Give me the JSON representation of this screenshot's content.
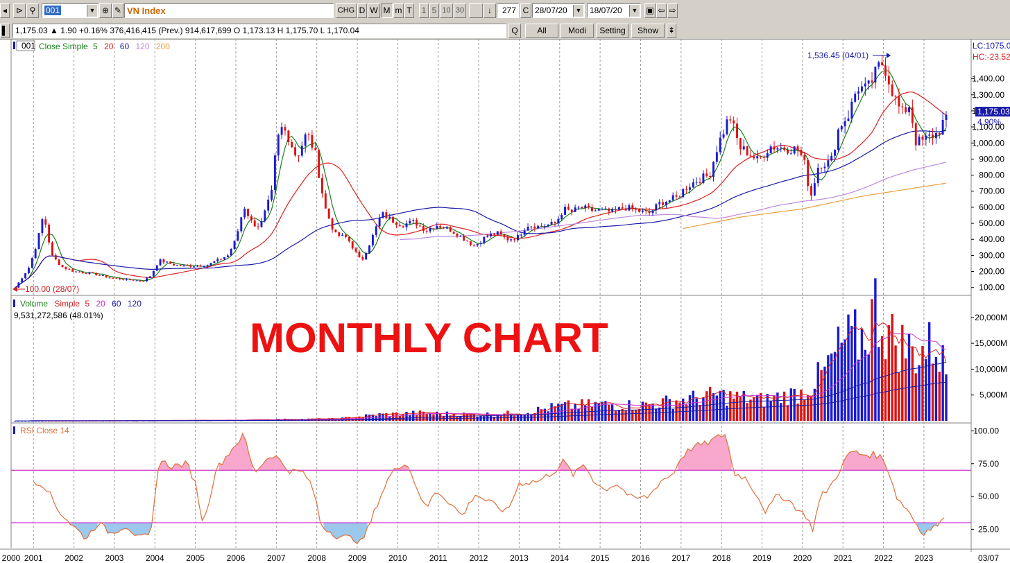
{
  "toolbar": {
    "symbol": "001",
    "name": "VN Index",
    "buttons": [
      "CHG",
      "D",
      "W",
      "M",
      "m",
      "T",
      "1",
      "5",
      "10",
      "30"
    ],
    "bar_count": "277",
    "c_button": "C",
    "from_date": "28/07/20",
    "to_date": "18/07/20"
  },
  "infobar": {
    "quote": "1,175.03 ▲ 1.90 +0.16% 376,416,415 (Prev.) 914,617,699 O 1,173.13 H 1,175.70 L 1,170.04",
    "q_label": "Q",
    "all_label": "All",
    "modi_label": "Modi",
    "setting_label": "Setting",
    "show_label": "Show"
  },
  "price_panel": {
    "symbol_tag": "001",
    "legend_prefix": "Close Simple",
    "ma_periods": [
      "5",
      "20",
      "60",
      "120",
      "200"
    ],
    "ma_colors": [
      "#1a7f1a",
      "#dd2222",
      "#1a1aa8",
      "#bb88dd",
      "#e8a040"
    ],
    "high_annotation": "1,536.45 (04/01)",
    "low_annotation": "100.00 (28/07)",
    "lc_label": "LC:1075.0",
    "hc_label": "HC:-23.52",
    "last_price_tag": "1,175.03",
    "change_pct_tag": "4.90%",
    "y_ticks": [
      "100.00",
      "200.00",
      "300.00",
      "400.00",
      "500.00",
      "600.00",
      "700.00",
      "800.00",
      "900.00",
      "1,000.00",
      "1,100.00",
      "1,200.00",
      "1,300.00",
      "1,400.00"
    ]
  },
  "volume_panel": {
    "title": "Volume",
    "legend_prefix": "Simple",
    "ma_periods": [
      "5",
      "20",
      "60",
      "120"
    ],
    "ma_colors": [
      "#dd2222",
      "#cc33cc",
      "#1a1aa8",
      "#1a1aa8"
    ],
    "last_value": "9,531,272,586 (48.01%)",
    "y_ticks": [
      "5,000M",
      "10,000M",
      "15,000M",
      "20,000M"
    ]
  },
  "rsi_panel": {
    "title": "RSI Close 14",
    "y_ticks": [
      "25.00",
      "50.00",
      "75.00",
      "100.00"
    ]
  },
  "overlay_text": "MONTHLY CHART",
  "x_axis": {
    "year_labels": [
      "2000",
      "2001",
      "2002",
      "2003",
      "2004",
      "2005",
      "2006",
      "2007",
      "2008",
      "2009",
      "2010",
      "2011",
      "2012",
      "2013",
      "2014",
      "2015",
      "2016",
      "2017",
      "2018",
      "2019",
      "2020",
      "2021",
      "2022",
      "2023"
    ],
    "right_label": "03/07"
  },
  "chart_data": {
    "type": "candlestick",
    "title": "VN Index",
    "interval": "monthly",
    "x_range": [
      2000.55,
      2023.55
    ],
    "price_ylim": [
      60,
      1640
    ],
    "price_anchors": [
      [
        2000.55,
        100
      ],
      [
        2000.9,
        230
      ],
      [
        2001.1,
        390
      ],
      [
        2001.25,
        560
      ],
      [
        2001.45,
        300
      ],
      [
        2001.7,
        230
      ],
      [
        2002.0,
        200
      ],
      [
        2002.5,
        185
      ],
      [
        2002.9,
        160
      ],
      [
        2003.3,
        150
      ],
      [
        2003.7,
        140
      ],
      [
        2003.9,
        175
      ],
      [
        2004.1,
        270
      ],
      [
        2004.5,
        240
      ],
      [
        2004.9,
        235
      ],
      [
        2005.3,
        240
      ],
      [
        2005.8,
        300
      ],
      [
        2006.0,
        400
      ],
      [
        2006.2,
        610
      ],
      [
        2006.4,
        500
      ],
      [
        2006.6,
        480
      ],
      [
        2006.9,
        700
      ],
      [
        2007.0,
        1000
      ],
      [
        2007.15,
        1100
      ],
      [
        2007.3,
        1040
      ],
      [
        2007.5,
        910
      ],
      [
        2007.75,
        1060
      ],
      [
        2007.95,
        950
      ],
      [
        2008.2,
        600
      ],
      [
        2008.45,
        430
      ],
      [
        2008.75,
        410
      ],
      [
        2009.1,
        260
      ],
      [
        2009.35,
        400
      ],
      [
        2009.6,
        560
      ],
      [
        2009.85,
        520
      ],
      [
        2010.1,
        490
      ],
      [
        2010.4,
        510
      ],
      [
        2010.7,
        455
      ],
      [
        2010.95,
        490
      ],
      [
        2011.3,
        460
      ],
      [
        2011.6,
        410
      ],
      [
        2011.9,
        360
      ],
      [
        2012.2,
        420
      ],
      [
        2012.45,
        440
      ],
      [
        2012.7,
        400
      ],
      [
        2012.95,
        410
      ],
      [
        2013.2,
        490
      ],
      [
        2013.5,
        480
      ],
      [
        2013.9,
        500
      ],
      [
        2014.1,
        590
      ],
      [
        2014.3,
        570
      ],
      [
        2014.5,
        600
      ],
      [
        2014.8,
        580
      ],
      [
        2015.0,
        580
      ],
      [
        2015.3,
        570
      ],
      [
        2015.6,
        600
      ],
      [
        2015.9,
        580
      ],
      [
        2016.2,
        560
      ],
      [
        2016.5,
        630
      ],
      [
        2016.9,
        660
      ],
      [
        2017.1,
        720
      ],
      [
        2017.4,
        770
      ],
      [
        2017.7,
        800
      ],
      [
        2017.9,
        980
      ],
      [
        2018.2,
        1170
      ],
      [
        2018.45,
        970
      ],
      [
        2018.6,
        950
      ],
      [
        2018.9,
        890
      ],
      [
        2019.2,
        980
      ],
      [
        2019.5,
        970
      ],
      [
        2019.9,
        960
      ],
      [
        2020.05,
        870
      ],
      [
        2020.2,
        660
      ],
      [
        2020.4,
        870
      ],
      [
        2020.7,
        880
      ],
      [
        2020.9,
        1100
      ],
      [
        2021.15,
        1180
      ],
      [
        2021.35,
        1350
      ],
      [
        2021.6,
        1330
      ],
      [
        2021.9,
        1480
      ],
      [
        2022.0,
        1500
      ],
      [
        2022.25,
        1300
      ],
      [
        2022.45,
        1180
      ],
      [
        2022.65,
        1240
      ],
      [
        2022.8,
        1010
      ],
      [
        2022.95,
        1010
      ],
      [
        2023.15,
        1040
      ],
      [
        2023.35,
        1060
      ],
      [
        2023.55,
        1175
      ]
    ],
    "ma200_anchors": [
      [
        2017.0,
        465
      ],
      [
        2018.5,
        540
      ],
      [
        2020.0,
        590
      ],
      [
        2021.5,
        670
      ],
      [
        2023.55,
        750
      ]
    ],
    "volume_ylim": [
      0,
      24000
    ],
    "volume_anchors": [
      [
        2000.55,
        5
      ],
      [
        2003.0,
        30
      ],
      [
        2006.0,
        150
      ],
      [
        2007.0,
        300
      ],
      [
        2008.5,
        400
      ],
      [
        2009.5,
        1200
      ],
      [
        2010.5,
        1500
      ],
      [
        2012.0,
        1200
      ],
      [
        2013.0,
        1500
      ],
      [
        2014.0,
        2800
      ],
      [
        2015.0,
        3200
      ],
      [
        2016.0,
        3000
      ],
      [
        2017.0,
        4000
      ],
      [
        2017.9,
        5000
      ],
      [
        2019.0,
        4000
      ],
      [
        2020.0,
        5500
      ],
      [
        2020.5,
        9000
      ],
      [
        2021.0,
        15000
      ],
      [
        2021.5,
        16000
      ],
      [
        2021.8,
        22000
      ],
      [
        2022.2,
        16000
      ],
      [
        2022.8,
        13000
      ],
      [
        2023.3,
        15000
      ],
      [
        2023.55,
        9500
      ]
    ],
    "rsi_ylim": [
      12,
      105
    ],
    "rsi_levels": [
      30,
      70
    ],
    "rsi_anchors": [
      [
        2001.0,
        62
      ],
      [
        2001.3,
        58
      ],
      [
        2001.6,
        40
      ],
      [
        2001.9,
        30
      ],
      [
        2002.3,
        18
      ],
      [
        2002.6,
        30
      ],
      [
        2002.9,
        22
      ],
      [
        2003.3,
        28
      ],
      [
        2003.6,
        18
      ],
      [
        2003.9,
        20
      ],
      [
        2004.1,
        78
      ],
      [
        2004.4,
        73
      ],
      [
        2004.8,
        75
      ],
      [
        2005.0,
        60
      ],
      [
        2005.2,
        28
      ],
      [
        2005.5,
        70
      ],
      [
        2006.0,
        90
      ],
      [
        2006.2,
        97
      ],
      [
        2006.45,
        68
      ],
      [
        2006.8,
        80
      ],
      [
        2006.95,
        82
      ],
      [
        2007.3,
        70
      ],
      [
        2007.7,
        68
      ],
      [
        2007.95,
        52
      ],
      [
        2008.1,
        28
      ],
      [
        2008.5,
        20
      ],
      [
        2008.9,
        18
      ],
      [
        2009.1,
        15
      ],
      [
        2009.3,
        28
      ],
      [
        2009.5,
        45
      ],
      [
        2009.8,
        66
      ],
      [
        2010.0,
        72
      ],
      [
        2010.2,
        77
      ],
      [
        2010.5,
        55
      ],
      [
        2010.7,
        40
      ],
      [
        2010.95,
        55
      ],
      [
        2011.2,
        48
      ],
      [
        2011.6,
        35
      ],
      [
        2011.9,
        52
      ],
      [
        2012.3,
        45
      ],
      [
        2012.7,
        38
      ],
      [
        2013.0,
        60
      ],
      [
        2013.5,
        62
      ],
      [
        2013.9,
        70
      ],
      [
        2014.1,
        77
      ],
      [
        2014.35,
        66
      ],
      [
        2014.6,
        75
      ],
      [
        2014.85,
        62
      ],
      [
        2015.1,
        55
      ],
      [
        2015.4,
        60
      ],
      [
        2015.8,
        48
      ],
      [
        2016.2,
        50
      ],
      [
        2016.5,
        62
      ],
      [
        2016.8,
        67
      ],
      [
        2017.0,
        80
      ],
      [
        2017.3,
        88
      ],
      [
        2017.6,
        90
      ],
      [
        2017.9,
        95
      ],
      [
        2018.1,
        98
      ],
      [
        2018.3,
        68
      ],
      [
        2018.6,
        64
      ],
      [
        2018.9,
        50
      ],
      [
        2019.1,
        38
      ],
      [
        2019.4,
        52
      ],
      [
        2019.7,
        46
      ],
      [
        2019.95,
        38
      ],
      [
        2020.1,
        35
      ],
      [
        2020.25,
        25
      ],
      [
        2020.45,
        50
      ],
      [
        2020.7,
        58
      ],
      [
        2020.95,
        72
      ],
      [
        2021.2,
        85
      ],
      [
        2021.45,
        82
      ],
      [
        2021.75,
        82
      ],
      [
        2021.95,
        80
      ],
      [
        2022.1,
        72
      ],
      [
        2022.35,
        48
      ],
      [
        2022.6,
        40
      ],
      [
        2022.8,
        30
      ],
      [
        2022.95,
        22
      ],
      [
        2023.2,
        26
      ],
      [
        2023.45,
        30
      ],
      [
        2023.55,
        42
      ]
    ]
  }
}
